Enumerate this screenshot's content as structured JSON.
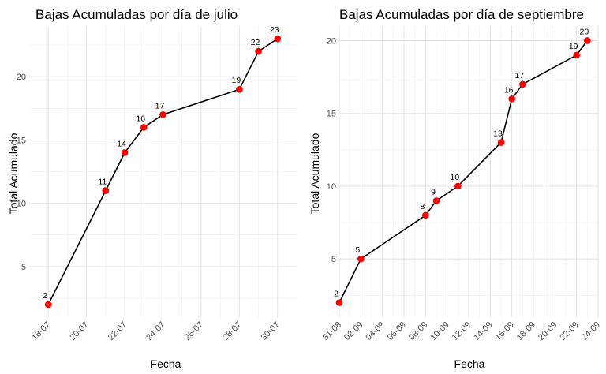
{
  "chart_data": [
    {
      "type": "line",
      "title": "Bajas Acumuladas por día de julio",
      "xlabel": "Fecha",
      "ylabel": "Total Acumulado",
      "x_ticks": [
        "18-07",
        "20-07",
        "22-07",
        "24-07",
        "26-07",
        "28-07",
        "30-07"
      ],
      "y_ticks": [
        5,
        10,
        15,
        20
      ],
      "xlim": [
        "2024-07-17",
        "2024-07-31"
      ],
      "ylim": [
        1.0,
        24.0
      ],
      "grid": true,
      "line_color": "#000000",
      "point_color": "#ff0000",
      "x": [
        "18-07",
        "21-07",
        "22-07",
        "23-07",
        "24-07",
        "28-07",
        "29-07",
        "30-07"
      ],
      "y": [
        2,
        11,
        14,
        16,
        17,
        19,
        22,
        23
      ],
      "labels": [
        "2",
        "11",
        "14",
        "16",
        "17",
        "19",
        "22",
        "23"
      ]
    },
    {
      "type": "line",
      "title": "Bajas Acumuladas por día de septiembre",
      "xlabel": "Fecha",
      "ylabel": "Total Acumulado",
      "x_ticks": [
        "31-08",
        "02-09",
        "04-09",
        "06-09",
        "08-09",
        "10-09",
        "12-09",
        "14-09",
        "16-09",
        "18-09",
        "20-09",
        "22-09",
        "24-09"
      ],
      "y_ticks": [
        5,
        10,
        15,
        20
      ],
      "xlim": [
        "2024-08-31",
        "2024-09-24"
      ],
      "ylim": [
        1.0,
        21.0
      ],
      "grid": true,
      "line_color": "#000000",
      "point_color": "#ff0000",
      "x": [
        "31-08",
        "02-09",
        "08-09",
        "09-09",
        "11-09",
        "15-09",
        "16-09",
        "17-09",
        "22-09",
        "23-09"
      ],
      "y": [
        2,
        5,
        8,
        9,
        10,
        13,
        16,
        17,
        19,
        20
      ],
      "labels": [
        "2",
        "5",
        "8",
        "9",
        "10",
        "13",
        "16",
        "17",
        "19",
        "20"
      ]
    }
  ]
}
